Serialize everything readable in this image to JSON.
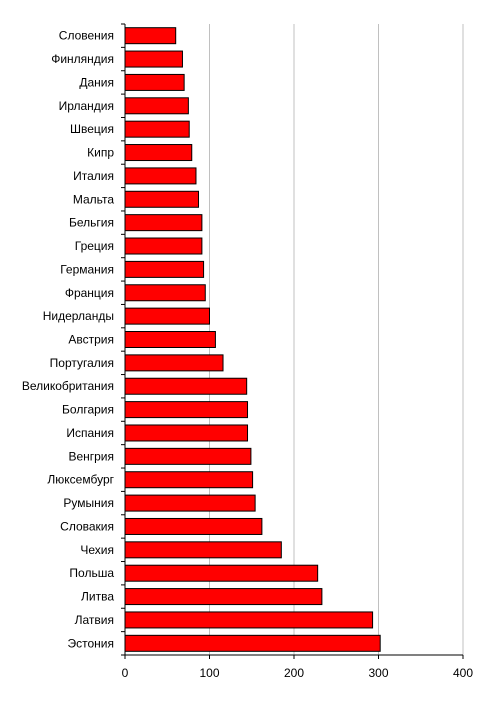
{
  "chart_data": {
    "type": "bar",
    "orientation": "horizontal",
    "categories": [
      "Словения",
      "Финляндия",
      "Дания",
      "Ирландия",
      "Швеция",
      "Кипр",
      "Италия",
      "Мальта",
      "Бельгия",
      "Греция",
      "Германия",
      "Франция",
      "Нидерланды",
      "Австрия",
      "Португалия",
      "Великобритания",
      "Болгария",
      "Испания",
      "Венгрия",
      "Люксембург",
      "Румыния",
      "Словакия",
      "Чехия",
      "Польша",
      "Литва",
      "Латвия",
      "Эстония"
    ],
    "values": [
      60,
      68,
      70,
      75,
      76,
      79,
      84,
      87,
      91,
      91,
      93,
      95,
      100,
      107,
      116,
      144,
      145,
      145,
      149,
      151,
      154,
      162,
      185,
      228,
      233,
      293,
      302
    ],
    "xlim": [
      0,
      400
    ],
    "x_ticks": [
      "0",
      "100",
      "200",
      "300",
      "400"
    ],
    "bar_color": "#ff0000",
    "bar_edge_color": "#000000",
    "grid": "vertical",
    "grid_color": "#c0c0c0",
    "legend": "none",
    "title": "",
    "xlabel": "",
    "ylabel": ""
  }
}
